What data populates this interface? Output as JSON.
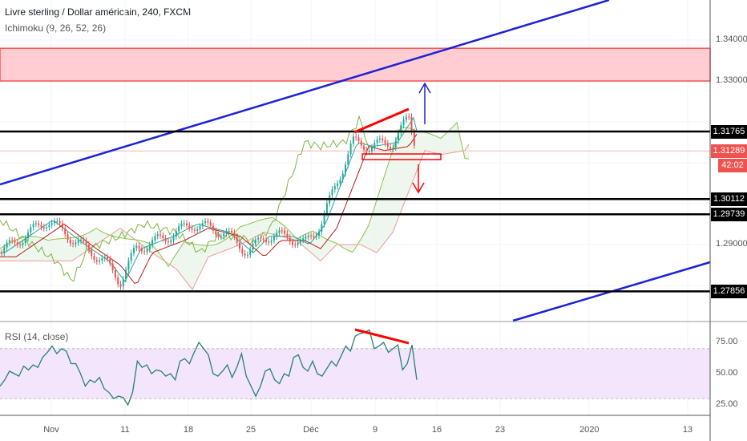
{
  "header": {
    "title": "Livre sterling / Dollar américain, 240, FXCM",
    "indicator": "Ichimoku (9, 26, 52, 26)"
  },
  "rsi": {
    "label": "RSI (14, close)",
    "ticks": [
      "75.00",
      "50.00",
      "25.00"
    ],
    "values": [
      40,
      45,
      52,
      50,
      48,
      56,
      53,
      57,
      55,
      63,
      67,
      72,
      66,
      70,
      68,
      58,
      58,
      50,
      40,
      45,
      43,
      47,
      38,
      35,
      30,
      32,
      31,
      25,
      35,
      60,
      55,
      57,
      50,
      53,
      52,
      48,
      50,
      45,
      60,
      62,
      58,
      67,
      75,
      70,
      65,
      50,
      48,
      52,
      57,
      47,
      55,
      66,
      48,
      40,
      32,
      40,
      52,
      54,
      45,
      42,
      50,
      48,
      63,
      65,
      55,
      52,
      60,
      50,
      48,
      54,
      60,
      56,
      64,
      72,
      68,
      80,
      82,
      83,
      85,
      70,
      72,
      75,
      67,
      70,
      73,
      53,
      58,
      73,
      45
    ],
    "colors": {
      "line": "#26807a",
      "band": "#f3e5fc",
      "divergence": "#ff0000"
    }
  },
  "price_axis": {
    "ticks": [
      "1.34000",
      "1.33000",
      "1.29000"
    ],
    "labels": [
      {
        "text": "1.31765",
        "price": 1.31765
      },
      {
        "text": "1.30112",
        "price": 1.30112
      },
      {
        "text": "1.29739",
        "price": 1.29739
      },
      {
        "text": "1.27856",
        "price": 1.27856
      }
    ],
    "current": {
      "text": "1.31289",
      "price": 1.31289,
      "countdown": "42:02",
      "color": "#ef5350"
    }
  },
  "time_axis": [
    "Nov",
    "11",
    "18",
    "25",
    "Déc",
    "9",
    "16",
    "23",
    "2020",
    "13"
  ],
  "close_path": [
    [
      0,
      1.288
    ],
    [
      30,
      1.292
    ],
    [
      60,
      1.296
    ],
    [
      100,
      1.29
    ],
    [
      130,
      1.286
    ],
    [
      150,
      1.281
    ],
    [
      170,
      1.289
    ],
    [
      210,
      1.292
    ],
    [
      240,
      1.295
    ],
    [
      280,
      1.293
    ],
    [
      310,
      1.288
    ],
    [
      330,
      1.292
    ],
    [
      360,
      1.292
    ],
    [
      380,
      1.29
    ],
    [
      400,
      1.295
    ],
    [
      420,
      1.305
    ],
    [
      440,
      1.315
    ],
    [
      460,
      1.314
    ],
    [
      490,
      1.315
    ],
    [
      510,
      1.321
    ],
    [
      520,
      1.3129
    ]
  ],
  "zone": {
    "top": 1.338,
    "bottom": 1.33,
    "color": "#ff5252"
  }
}
